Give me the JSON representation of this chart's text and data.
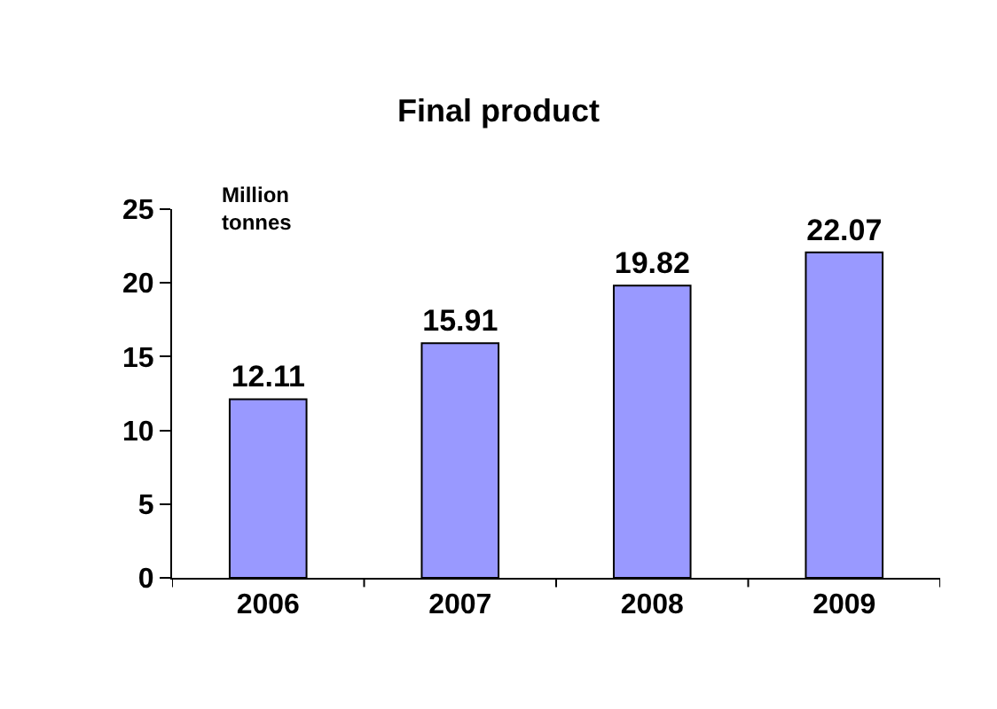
{
  "chart_data": {
    "type": "bar",
    "title": "Final product",
    "ylabel": "Million tonnes",
    "categories": [
      "2006",
      "2007",
      "2008",
      "2009"
    ],
    "values": [
      12.11,
      15.91,
      19.82,
      22.07
    ],
    "color": "#9999ff",
    "ylim": [
      0,
      25
    ],
    "yticks": [
      0,
      5,
      10,
      15,
      20,
      25
    ],
    "data_labels": true,
    "legend": false
  }
}
